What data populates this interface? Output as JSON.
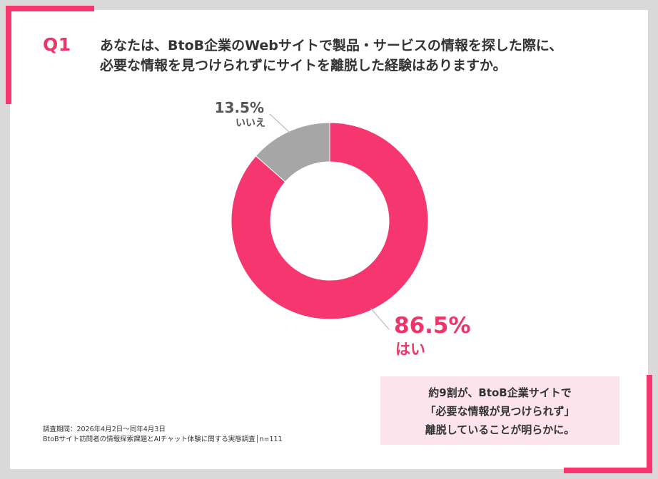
{
  "question": {
    "number": "Q1",
    "line1": "あなたは、BtoB企業のWebサイトで製品・サービスの情報を探した際に、",
    "line2": "必要な情報を見つけられずにサイトを離脱した経験はありますか。"
  },
  "chart_data": {
    "type": "pie",
    "variant": "donut",
    "slices": [
      {
        "label": "はい",
        "value": 86.5,
        "display": "86.5%",
        "color": "#f5366f"
      },
      {
        "label": "いいえ",
        "value": 13.5,
        "display": "13.5%",
        "color": "#a6a6a6"
      }
    ]
  },
  "callout": {
    "line1": "約9割が、BtoB企業サイトで",
    "line2": "「必要な情報が見つけられず」",
    "line3": "離脱していることが明らかに。"
  },
  "footnote": {
    "line1": "調査期間：2026年4月2日〜同年4月3日",
    "line2": "BtoBサイト訪問者の情報探索課題とAIチャット体験に関する実態調査│n=111"
  },
  "colors": {
    "accent": "#f5366f",
    "background": "#d9d9d9",
    "callout_bg": "#fde4ec"
  }
}
